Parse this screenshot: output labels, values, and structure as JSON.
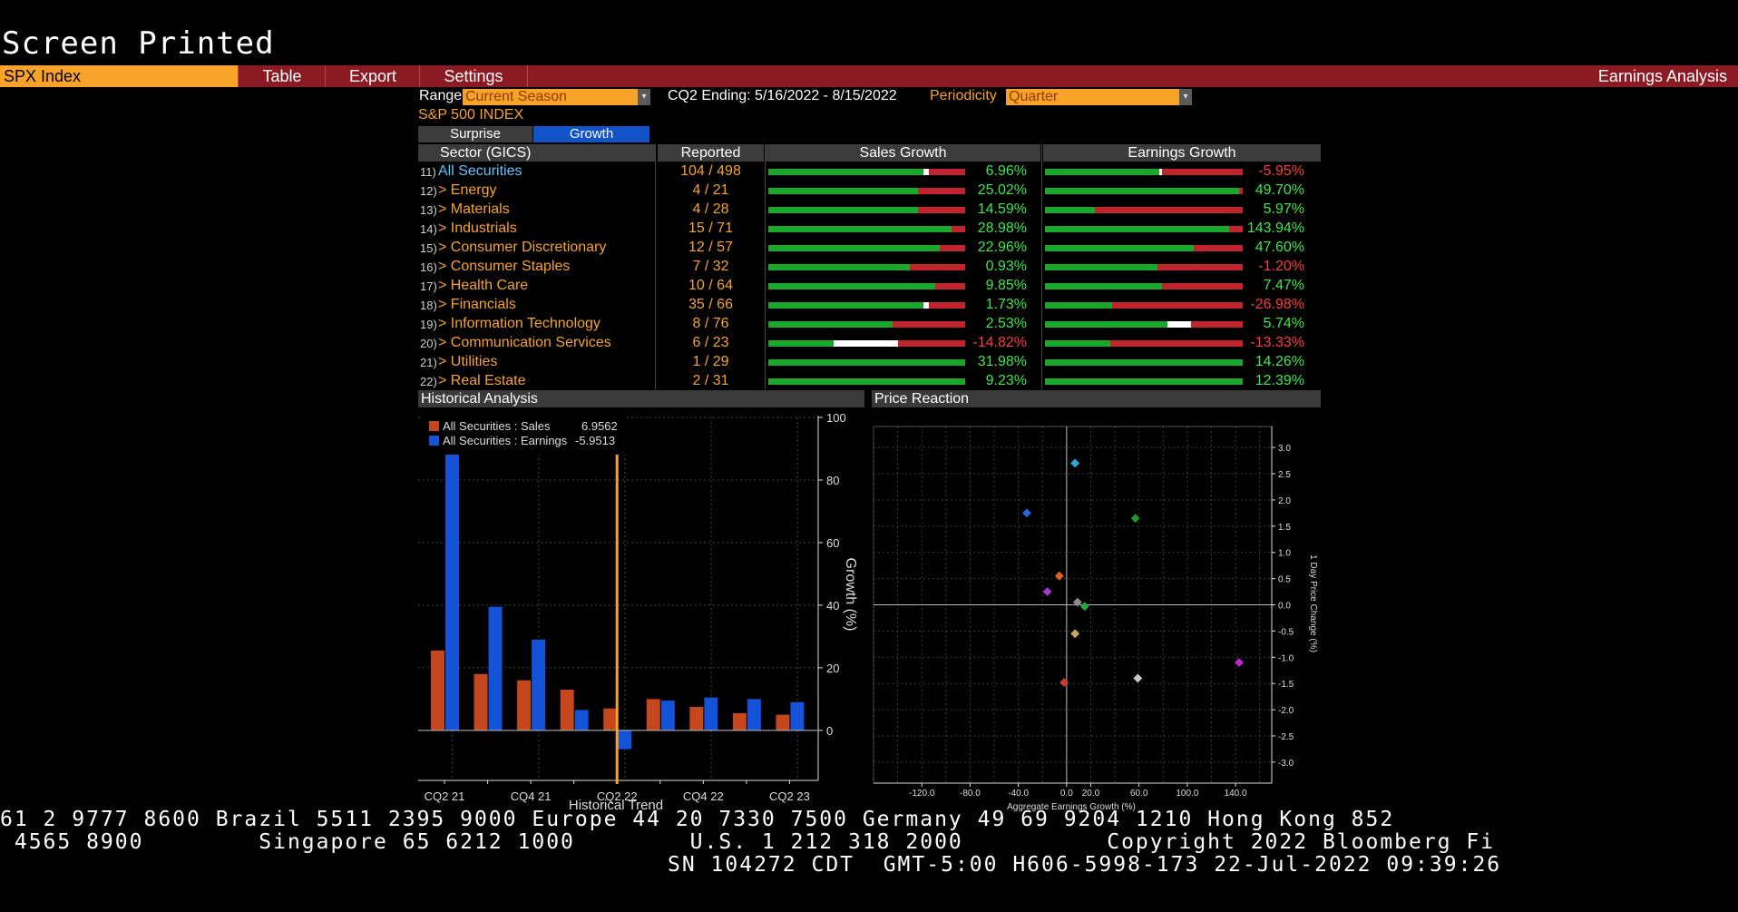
{
  "title": "Screen Printed",
  "menubar": {
    "security": "SPX Index",
    "items": [
      "Table",
      "Export",
      "Settings"
    ],
    "right_label": "Earnings Analysis"
  },
  "controls": {
    "range_label": "Range",
    "range_value": "Current Season",
    "period_text": "CQ2 Ending: 5/16/2022 - 8/15/2022",
    "periodicity_label": "Periodicity",
    "periodicity_value": "Quarter",
    "index_name": "S&P 500 INDEX",
    "tabs": [
      "Surprise",
      "Growth"
    ],
    "active_tab": "Growth"
  },
  "table": {
    "headers": {
      "sector": "Sector (GICS)",
      "reported": "Reported",
      "sales": "Sales Growth",
      "earnings": "Earnings Growth"
    },
    "rows": [
      {
        "num": "11)",
        "sector": "All Securities",
        "reported": "104 / 498",
        "sales": "6.96%",
        "earnings": "-5.95%",
        "sales_level": 0.79,
        "earn_level": 0.58,
        "sales_mark": true,
        "earn_mark": true
      },
      {
        "num": "12)",
        "sector": "> Energy",
        "reported": "4 / 21",
        "sales": "25.02%",
        "earnings": "49.70%",
        "sales_level": 0.76,
        "earn_level": 0.98
      },
      {
        "num": "13)",
        "sector": "> Materials",
        "reported": "4 / 28",
        "sales": "14.59%",
        "earnings": "5.97%",
        "sales_level": 0.76,
        "earn_level": 0.25
      },
      {
        "num": "14)",
        "sector": "> Industrials",
        "reported": "15 / 71",
        "sales": "28.98%",
        "earnings": "143.94%",
        "sales_level": 0.93,
        "earn_level": 0.93
      },
      {
        "num": "15)",
        "sector": "> Consumer Discretionary",
        "reported": "12 / 57",
        "sales": "22.96%",
        "earnings": "47.60%",
        "sales_level": 0.87,
        "earn_level": 0.75
      },
      {
        "num": "16)",
        "sector": "> Consumer Staples",
        "reported": "7 / 32",
        "sales": "0.93%",
        "earnings": "-1.20%",
        "sales_level": 0.72,
        "earn_level": 0.57
      },
      {
        "num": "17)",
        "sector": "> Health Care",
        "reported": "10 / 64",
        "sales": "9.85%",
        "earnings": "7.47%",
        "sales_level": 0.85,
        "earn_level": 0.59
      },
      {
        "num": "18)",
        "sector": "> Financials",
        "reported": "35 / 66",
        "sales": "1.73%",
        "earnings": "-26.98%",
        "sales_level": 0.79,
        "earn_level": 0.34,
        "sales_mark": true
      },
      {
        "num": "19)",
        "sector": "> Information Technology",
        "reported": "8 / 76",
        "sales": "2.53%",
        "earnings": "5.74%",
        "sales_level": 0.63,
        "earn_level": 0.63,
        "earn_mark_wide": true
      },
      {
        "num": "20)",
        "sector": "> Communication Services",
        "reported": "6 / 23",
        "sales": "-14.82%",
        "earnings": "-13.33%",
        "sales_level": 0.33,
        "earn_level": 0.33,
        "sales_mark_wide": true
      },
      {
        "num": "21)",
        "sector": "> Utilities",
        "reported": "1 / 29",
        "sales": "31.98%",
        "earnings": "14.26%",
        "sales_level": 1.0,
        "earn_level": 1.0
      },
      {
        "num": "22)",
        "sector": "> Real Estate",
        "reported": "2 / 31",
        "sales": "9.23%",
        "earnings": "12.39%",
        "sales_level": 1.0,
        "earn_level": 1.0
      }
    ]
  },
  "historical": {
    "header": "Historical Analysis",
    "legend": [
      {
        "label": "All Securities : Sales",
        "value": "6.9562",
        "color": "#c4471d"
      },
      {
        "label": "All Securities : Earnings",
        "value": "-5.9513",
        "color": "#1452d8"
      }
    ],
    "xlabel": "Historical Trend",
    "ylabel": "Growth (%)"
  },
  "price_reaction": {
    "header": "Price Reaction",
    "xlabel": "Aggregate Earnings Growth (%)",
    "ylabel": "1 Day Price Change (%)"
  },
  "chart_data": [
    {
      "type": "bar",
      "categories": [
        "CQ2 21",
        "CQ3 21",
        "CQ4 21",
        "CQ1 22",
        "CQ2 22",
        "CQ3 22",
        "CQ4 22",
        "CQ1 23",
        "CQ2 23"
      ],
      "tick_labels": [
        "CQ2 21",
        "CQ4 21",
        "CQ2 22",
        "CQ4 22",
        "CQ2 23"
      ],
      "series": [
        {
          "name": "All Securities : Sales",
          "values": [
            25.5,
            18,
            16,
            13,
            7,
            10,
            7.5,
            5.5,
            5
          ],
          "color": "#c4471d"
        },
        {
          "name": "All Securities : Earnings",
          "values": [
            92,
            39.5,
            29,
            6.5,
            -6,
            9.5,
            10.5,
            10,
            9
          ],
          "color": "#1452d8"
        }
      ],
      "ylim": [
        -16,
        100
      ],
      "yticks": [
        0,
        20,
        40,
        60,
        80,
        100
      ],
      "marker_category": "CQ2 22",
      "title": "",
      "xlabel": "Historical Trend",
      "ylabel": "Growth (%)"
    },
    {
      "type": "scatter",
      "points": [
        {
          "x": 7,
          "y": 2.7,
          "color": "#2aa8d8"
        },
        {
          "x": -33,
          "y": 1.75,
          "color": "#2a62e0"
        },
        {
          "x": 57,
          "y": 1.65,
          "color": "#1f9a2a"
        },
        {
          "x": -6,
          "y": 0.55,
          "color": "#e0641a"
        },
        {
          "x": -16,
          "y": 0.25,
          "color": "#a634d0"
        },
        {
          "x": 9,
          "y": 0.05,
          "color": "#8c8c8c"
        },
        {
          "x": 15,
          "y": -0.03,
          "color": "#20a83a"
        },
        {
          "x": 7,
          "y": -0.55,
          "color": "#c9a866"
        },
        {
          "x": -2,
          "y": -1.48,
          "color": "#d23a2a"
        },
        {
          "x": 59,
          "y": -1.4,
          "color": "#c8c8c8"
        },
        {
          "x": 143,
          "y": -1.1,
          "color": "#c025d0"
        }
      ],
      "xlim": [
        -160,
        170
      ],
      "ylim": [
        -3.4,
        3.4
      ],
      "xticks": [
        -120,
        -80,
        -40,
        0,
        20,
        60,
        100,
        140
      ],
      "xtick_labels": [
        "-120.0",
        "-80.0",
        "-40.0",
        "0.0",
        "20.0",
        "60.0",
        "100.0",
        "140.0"
      ],
      "yticks": [
        3,
        2.5,
        2,
        1.5,
        1,
        0.5,
        0,
        -0.5,
        -1,
        -1.5,
        -2,
        -2.5,
        -3
      ],
      "ytick_labels": [
        "3.0",
        "2.5",
        "2.0",
        "1.5",
        "1.0",
        "0.5",
        "0.0",
        "-0.5",
        "-1.0",
        "-1.5",
        "-2.0",
        "-2.5",
        "-3.0"
      ],
      "title": "",
      "xlabel": "Aggregate Earnings Growth (%)",
      "ylabel": "1 Day Price Change (%)"
    }
  ],
  "footer": {
    "line1": "61 2 9777 8600 Brazil 5511 2395 9000 Europe 44 20 7330 7500 Germany 49 69 9204 1210 Hong Kong 852",
    "line2": " 4565 8900        Singapore 65 6212 1000        U.S. 1 212 318 2000          Copyright 2022 Bloomberg Fi",
    "line3": "SN 104272 CDT  GMT-5:00 H606-5998-173 22-Jul-2022 09:39:26"
  },
  "colors": {
    "orange": "#f7a329",
    "menubar": "#8b1a23",
    "positive": "#3ee84a",
    "negative": "#ff3b3b",
    "tab_active": "#1254c8"
  }
}
